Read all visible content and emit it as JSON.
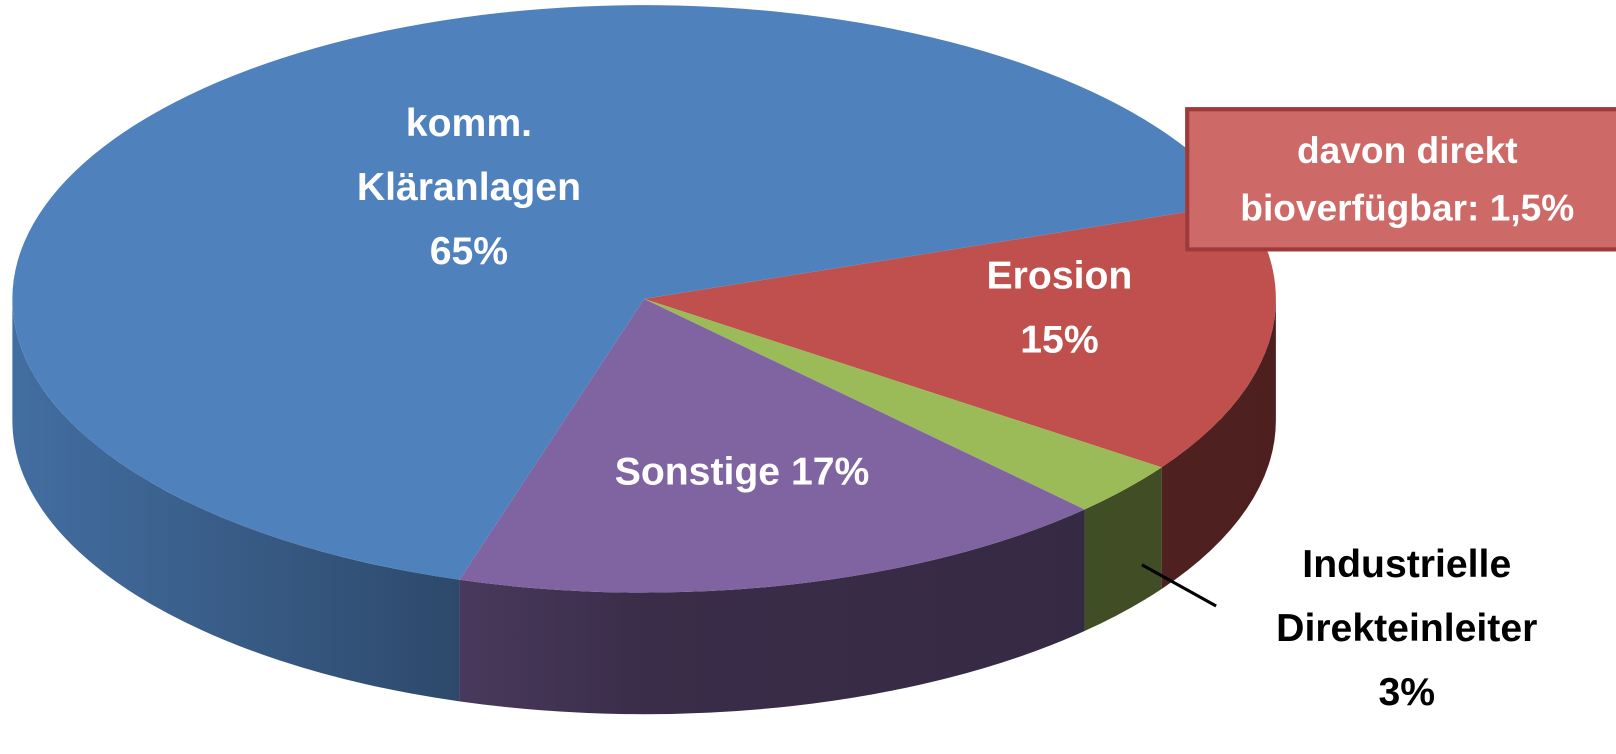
{
  "chart_data": {
    "type": "pie",
    "categories": [
      "Erosion",
      "Industrielle Direkteinleiter",
      "Sonstige",
      "komm. Kläranlagen"
    ],
    "values": [
      15,
      3,
      17,
      65
    ],
    "value_labels": [
      "15%",
      "3%",
      "17%",
      "65%"
    ],
    "colors": [
      "#c0504d",
      "#9bbb59",
      "#8064a2",
      "#4f81bd"
    ],
    "annotation": "davon direkt bioverfügbar: 1,5%"
  }
}
